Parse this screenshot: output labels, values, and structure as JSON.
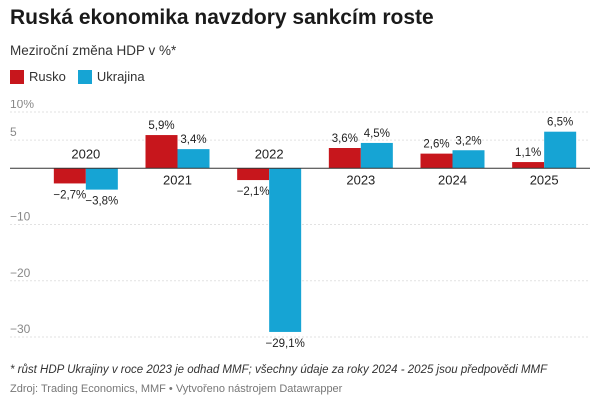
{
  "title": "Ruská ekonomika navzdory sankcím roste",
  "subtitle": "Meziroční změna HDP v %*",
  "legend": [
    {
      "label": "Rusko",
      "color": "#c7161c"
    },
    {
      "label": "Ukrajina",
      "color": "#16a4d4"
    }
  ],
  "chart_data": {
    "type": "bar",
    "categories": [
      "2020",
      "2021",
      "2022",
      "2023",
      "2024",
      "2025"
    ],
    "series": [
      {
        "name": "Rusko",
        "color": "#c7161c",
        "values": [
          -2.7,
          5.9,
          -2.1,
          3.6,
          2.6,
          1.1
        ],
        "labels": [
          "−2,7%",
          "5,9%",
          "−2,1%",
          "3,6%",
          "2,6%",
          "1,1%"
        ]
      },
      {
        "name": "Ukrajina",
        "color": "#16a4d4",
        "values": [
          -3.8,
          3.4,
          -29.1,
          4.5,
          3.2,
          6.5
        ],
        "labels": [
          "−3,8%",
          "3,4%",
          "−29,1%",
          "4,5%",
          "3,2%",
          "6,5%"
        ]
      }
    ],
    "ylim": [
      -30,
      10
    ],
    "yticks": [
      10,
      5,
      -10,
      -20,
      -30
    ],
    "ytick_labels": [
      "10%",
      "5",
      "−10",
      "−20",
      "−30"
    ],
    "grid": true
  },
  "note": "* růst HDP Ukrajiny v roce 2023 je odhad MMF; všechny údaje za roky 2024 - 2025 jsou předpovědi MMF",
  "source": "Zdroj: Trading Economics, MMF • Vytvořeno nástrojem Datawrapper"
}
